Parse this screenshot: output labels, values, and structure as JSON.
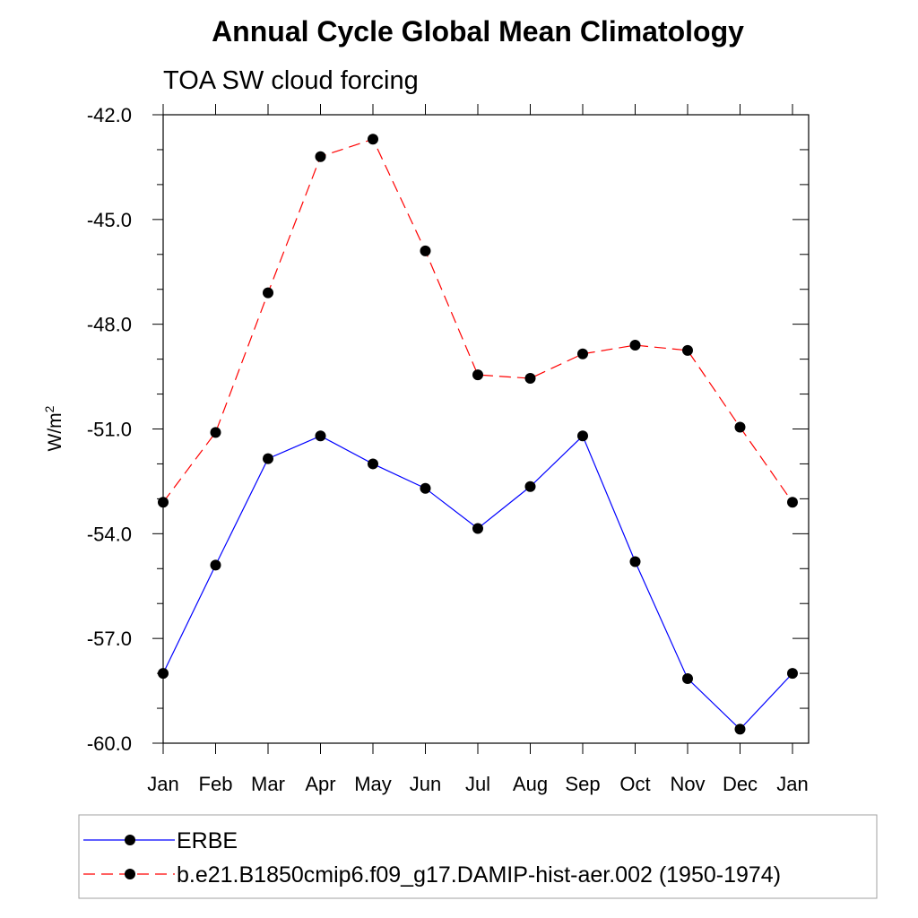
{
  "chart_data": {
    "type": "line",
    "title": "Annual Cycle Global Mean Climatology",
    "subtitle": "TOA SW cloud forcing",
    "xlabel": "",
    "ylabel": "W/m",
    "ylabel_sup": "2",
    "categories": [
      "Jan",
      "Feb",
      "Mar",
      "Apr",
      "May",
      "Jun",
      "Jul",
      "Aug",
      "Sep",
      "Oct",
      "Nov",
      "Dec",
      "Jan"
    ],
    "ylim": [
      -60.0,
      -42.0
    ],
    "yticks": [
      -60.0,
      -57.0,
      -54.0,
      -51.0,
      -48.0,
      -45.0,
      -42.0
    ],
    "ytick_labels": [
      "-60.0",
      "-57.0",
      "-54.0",
      "-51.0",
      "-48.0",
      "-45.0",
      "-42.0"
    ],
    "grid": false,
    "legend_position": "bottom",
    "series": [
      {
        "name": "ERBE",
        "color": "#0000ff",
        "dash": "solid",
        "marker": "filled-circle",
        "values": [
          -58.0,
          -54.9,
          -51.85,
          -51.2,
          -52.0,
          -52.7,
          -53.85,
          -52.65,
          -51.2,
          -54.8,
          -58.15,
          -59.6,
          -58.0
        ]
      },
      {
        "name": "b.e21.B1850cmip6.f09_g17.DAMIP-hist-aer.002 (1950-1974)",
        "color": "#ff0000",
        "dash": "dashed",
        "marker": "filled-circle",
        "values": [
          -53.1,
          -51.1,
          -47.1,
          -43.2,
          -42.7,
          -45.9,
          -49.45,
          -49.55,
          -48.85,
          -48.6,
          -48.75,
          -50.95,
          -53.1
        ]
      }
    ]
  }
}
